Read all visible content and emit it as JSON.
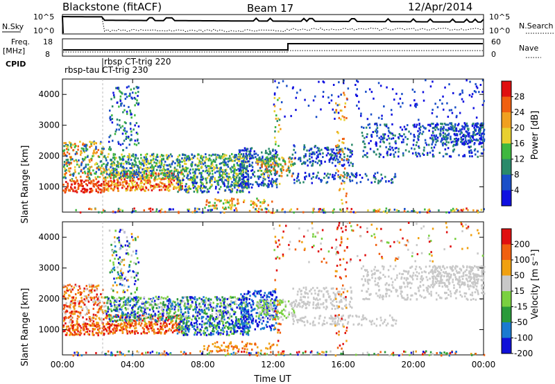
{
  "header": {
    "station": "Blackstone (fitACF)",
    "beam": "Beam 17",
    "date": "12/Apr/2014"
  },
  "top_panel": {
    "nsky_label": "N.Sky",
    "nsky_ticks": [
      "10^5",
      "10^0"
    ],
    "nsearch_label": "N.Search",
    "nsearch_ticks": [
      "10^5",
      "10^0"
    ],
    "freq_label_1": "Freq.",
    "freq_label_2": "[MHz]",
    "freq_ticks": [
      "18",
      "8"
    ],
    "nave_label": "Nave",
    "nave_ticks": [
      "60",
      "0"
    ],
    "cpid_label": "CPID",
    "cpid_entries": [
      "rbsp CT-trig 220",
      "rbsp-tau CT-trig 230"
    ]
  },
  "chart_data": [
    {
      "type": "heatmap",
      "name": "power",
      "ylabel": "Slant Range [km]",
      "xlabel": "",
      "yticks": [
        "1000",
        "2000",
        "3000",
        "4000"
      ],
      "xticks_hours": [
        0,
        4,
        8,
        12,
        16,
        20,
        24
      ],
      "ylim": [
        180,
        4500
      ],
      "xlim_hours": [
        0,
        24
      ],
      "colorbar_label": "Power [dB]",
      "colorbar_ticks": [
        "4",
        "8",
        "12",
        "16",
        "20",
        "24",
        "28"
      ],
      "colorbar_colors": [
        "#1010e0",
        "#1a4fc8",
        "#2a8a6a",
        "#3fb83f",
        "#e8d030",
        "#f0a020",
        "#f06010",
        "#e01010"
      ]
    },
    {
      "type": "heatmap",
      "name": "velocity",
      "ylabel": "Slant Range [km]",
      "xlabel": "Time UT",
      "yticks": [
        "1000",
        "2000",
        "3000",
        "4000"
      ],
      "xticks": [
        "00:00",
        "04:00",
        "08:00",
        "12:00",
        "16:00",
        "20:00",
        "00:00"
      ],
      "ylim": [
        180,
        4500
      ],
      "xlim_hours": [
        0,
        24
      ],
      "colorbar_label": "Velocity [m s⁻¹]",
      "colorbar_ticks": [
        "200",
        "100",
        "50",
        "15",
        "-15",
        "-50",
        "-100",
        "-200"
      ],
      "colorbar_colors": [
        "#1010d8",
        "#1a7ad0",
        "#2a9a3a",
        "#7ad040",
        "#c8c8c8",
        "#f0a010",
        "#f06010",
        "#e01010"
      ]
    }
  ]
}
